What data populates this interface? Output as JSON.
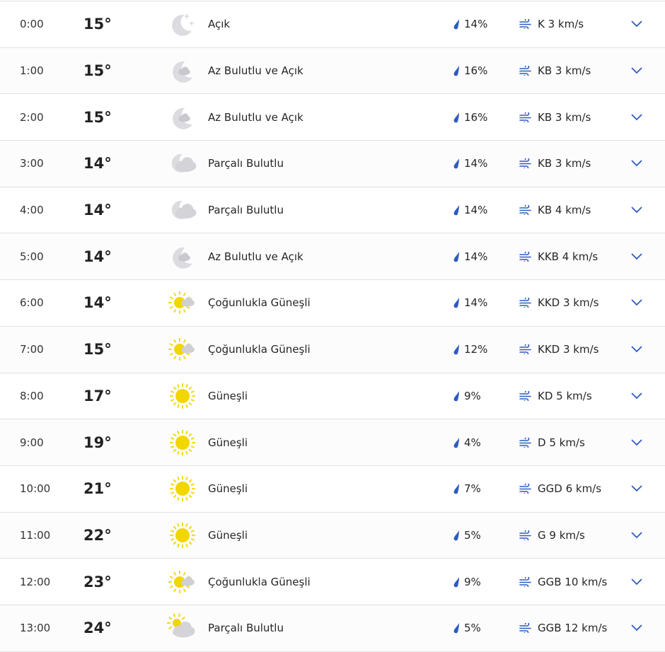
{
  "colors": {
    "accent": "#2f5bbf",
    "sun": "#f2d600",
    "moon": "#dcdce0",
    "cloud": "#d3d3d8"
  },
  "rows": [
    {
      "time": "0:00",
      "temp": "15°",
      "icon": "clear-night",
      "condition": "Açık",
      "precip": "14%",
      "wind": "K 3 km/s"
    },
    {
      "time": "1:00",
      "temp": "15°",
      "icon": "mostly-clear-night",
      "condition": "Az Bulutlu ve Açık",
      "precip": "16%",
      "wind": "KB 3 km/s"
    },
    {
      "time": "2:00",
      "temp": "15°",
      "icon": "mostly-clear-night",
      "condition": "Az Bulutlu ve Açık",
      "precip": "16%",
      "wind": "KB 3 km/s"
    },
    {
      "time": "3:00",
      "temp": "14°",
      "icon": "partly-cloudy-night",
      "condition": "Parçalı Bulutlu",
      "precip": "14%",
      "wind": "KB 3 km/s"
    },
    {
      "time": "4:00",
      "temp": "14°",
      "icon": "partly-cloudy-night",
      "condition": "Parçalı Bulutlu",
      "precip": "14%",
      "wind": "KB 4 km/s"
    },
    {
      "time": "5:00",
      "temp": "14°",
      "icon": "mostly-clear-night",
      "condition": "Az Bulutlu ve Açık",
      "precip": "14%",
      "wind": "KKB 4 km/s"
    },
    {
      "time": "6:00",
      "temp": "14°",
      "icon": "mostly-sunny",
      "condition": "Çoğunlukla Güneşli",
      "precip": "14%",
      "wind": "KKD 3 km/s"
    },
    {
      "time": "7:00",
      "temp": "15°",
      "icon": "mostly-sunny",
      "condition": "Çoğunlukla Güneşli",
      "precip": "12%",
      "wind": "KKD 3 km/s"
    },
    {
      "time": "8:00",
      "temp": "17°",
      "icon": "sunny",
      "condition": "Güneşli",
      "precip": "9%",
      "wind": "KD 5 km/s"
    },
    {
      "time": "9:00",
      "temp": "19°",
      "icon": "sunny",
      "condition": "Güneşli",
      "precip": "4%",
      "wind": "D 5 km/s"
    },
    {
      "time": "10:00",
      "temp": "21°",
      "icon": "sunny",
      "condition": "Güneşli",
      "precip": "7%",
      "wind": "GGD 6 km/s"
    },
    {
      "time": "11:00",
      "temp": "22°",
      "icon": "sunny",
      "condition": "Güneşli",
      "precip": "5%",
      "wind": "G 9 km/s"
    },
    {
      "time": "12:00",
      "temp": "23°",
      "icon": "mostly-sunny",
      "condition": "Çoğunlukla Güneşli",
      "precip": "9%",
      "wind": "GGB 10 km/s"
    },
    {
      "time": "13:00",
      "temp": "24°",
      "icon": "partly-cloudy-day",
      "condition": "Parçalı Bulutlu",
      "precip": "5%",
      "wind": "GGB 12 km/s"
    }
  ]
}
